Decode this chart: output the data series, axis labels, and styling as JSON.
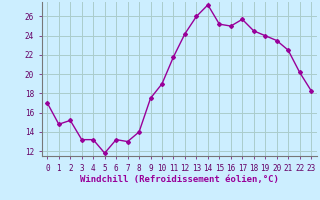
{
  "hours": [
    0,
    1,
    2,
    3,
    4,
    5,
    6,
    7,
    8,
    9,
    10,
    11,
    12,
    13,
    14,
    15,
    16,
    17,
    18,
    19,
    20,
    21,
    22,
    23
  ],
  "values": [
    17.0,
    14.8,
    15.2,
    13.2,
    13.2,
    11.8,
    13.2,
    13.0,
    14.0,
    17.5,
    19.0,
    21.8,
    24.2,
    26.0,
    27.2,
    25.2,
    25.0,
    25.7,
    24.5,
    24.0,
    23.5,
    22.5,
    20.2,
    18.3
  ],
  "line_color": "#990099",
  "marker": "D",
  "marker_size": 2,
  "bg_color": "#cceeff",
  "grid_color": "#aacccc",
  "xlabel": "Windchill (Refroidissement éolien,°C)",
  "ylim": [
    11.5,
    27.5
  ],
  "yticks": [
    12,
    14,
    16,
    18,
    20,
    22,
    24,
    26
  ],
  "xtick_labels": [
    "0",
    "1",
    "2",
    "3",
    "4",
    "5",
    "6",
    "7",
    "8",
    "9",
    "10",
    "11",
    "12",
    "13",
    "14",
    "15",
    "16",
    "17",
    "18",
    "19",
    "20",
    "21",
    "22",
    "23"
  ],
  "tick_fontsize": 5.5,
  "xlabel_fontsize": 6.5
}
